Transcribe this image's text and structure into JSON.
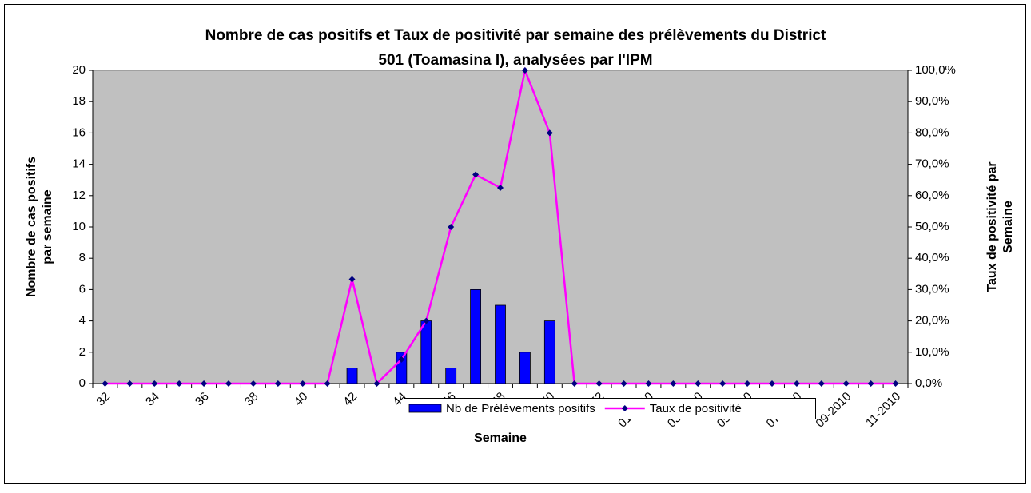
{
  "chart_data": {
    "type": "bar-line",
    "title": [
      "Nombre de cas positifs et Taux de positivité par semaine des prélèvements du District",
      "501 (Toamasina I), analysées par l'IPM"
    ],
    "xlabel": "Semaine",
    "ylabel": [
      "Nombre de cas positifs",
      "par semaine"
    ],
    "y2label": [
      "Taux de positivité par",
      "Semaine"
    ],
    "categories": [
      "32",
      null,
      "34",
      null,
      "36",
      null,
      "38",
      null,
      "40",
      null,
      "42",
      null,
      "44",
      null,
      "46",
      null,
      "48",
      null,
      "50",
      null,
      "52",
      null,
      "01-2010",
      null,
      "03-2010",
      null,
      "05-2010",
      null,
      "07-2010",
      null,
      "09-2010",
      null,
      "11-2010"
    ],
    "series": [
      {
        "name": "Nb de Prélèvements positifs",
        "type": "bar",
        "color": "#0000ff",
        "values": [
          0,
          0,
          0,
          0,
          0,
          0,
          0,
          0,
          0,
          0,
          1,
          0,
          2,
          4,
          1,
          6,
          5,
          2,
          4,
          0,
          0,
          0,
          0,
          0,
          0,
          0,
          0,
          0,
          0,
          0,
          0,
          0,
          0
        ]
      },
      {
        "name": "Taux de positivité",
        "type": "line",
        "axis": "y2",
        "color": "#ff00ff",
        "marker_color": "#000080",
        "values": [
          0,
          0,
          0,
          0,
          0,
          0,
          0,
          0,
          0,
          0,
          33.3,
          0,
          7.7,
          20,
          50,
          66.7,
          62.5,
          100,
          80,
          0,
          0,
          0,
          0,
          0,
          0,
          0,
          0,
          0,
          0,
          0,
          0,
          0,
          0
        ]
      }
    ],
    "ylim": [
      0,
      20
    ],
    "yticks": [
      0,
      2,
      4,
      6,
      8,
      10,
      12,
      14,
      16,
      18,
      20
    ],
    "y2lim": [
      0,
      100
    ],
    "y2ticks": [
      {
        "value": 0,
        "label": "0,0%"
      },
      {
        "value": 10,
        "label": "10,0%"
      },
      {
        "value": 20,
        "label": "20,0%"
      },
      {
        "value": 30,
        "label": "30,0%"
      },
      {
        "value": 40,
        "label": "40,0%"
      },
      {
        "value": 50,
        "label": "50,0%"
      },
      {
        "value": 60,
        "label": "60,0%"
      },
      {
        "value": 70,
        "label": "70,0%"
      },
      {
        "value": 80,
        "label": "80,0%"
      },
      {
        "value": 90,
        "label": "90,0%"
      },
      {
        "value": 100,
        "label": "100,0%"
      }
    ],
    "plot_background": "#c0c0c0",
    "legend": "bottom"
  }
}
